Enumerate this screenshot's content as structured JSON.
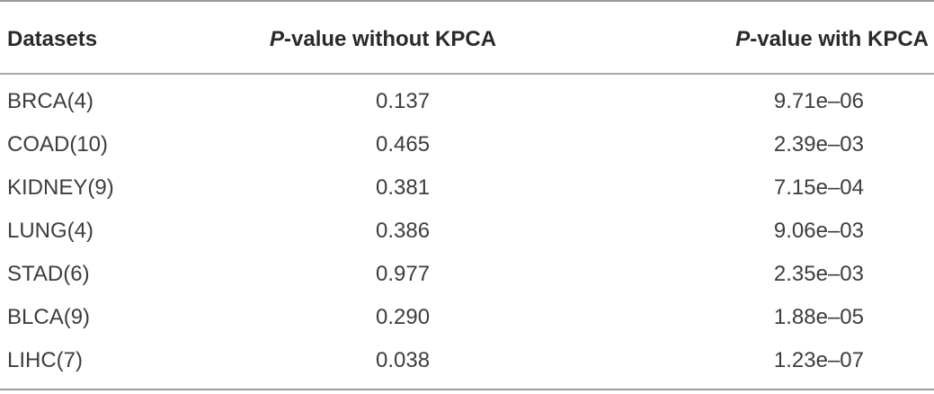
{
  "table": {
    "headers": {
      "dataset": "Datasets",
      "without_prefix": "P",
      "without_suffix": "-value without KPCA",
      "with_prefix": "P",
      "with_suffix": "-value with KPCA"
    },
    "rows": [
      {
        "dataset": "BRCA(4)",
        "without": "0.137",
        "with": "9.71e–06"
      },
      {
        "dataset": "COAD(10)",
        "without": "0.465",
        "with": "2.39e–03"
      },
      {
        "dataset": "KIDNEY(9)",
        "without": "0.381",
        "with": "7.15e–04"
      },
      {
        "dataset": "LUNG(4)",
        "without": "0.386",
        "with": "9.06e–03"
      },
      {
        "dataset": "STAD(6)",
        "without": "0.977",
        "with": "2.35e–03"
      },
      {
        "dataset": "BLCA(9)",
        "without": "0.290",
        "with": "1.88e–05"
      },
      {
        "dataset": "LIHC(7)",
        "without": "0.038",
        "with": "1.23e–07"
      }
    ]
  }
}
